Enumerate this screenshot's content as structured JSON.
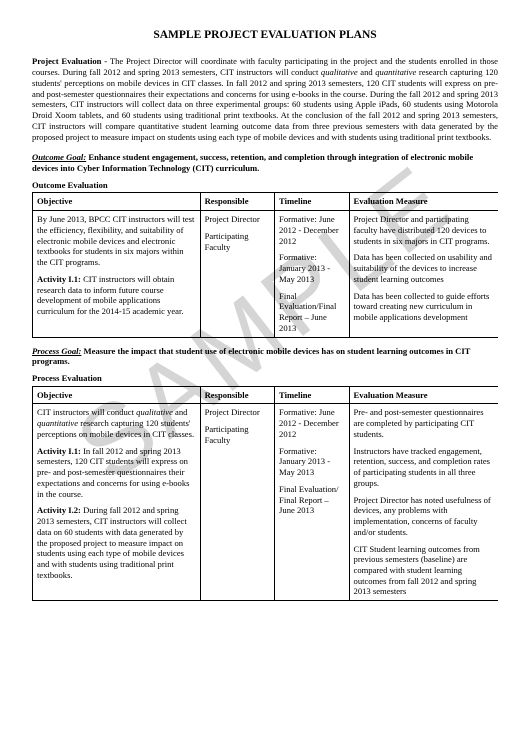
{
  "title": "SAMPLE PROJECT EVALUATION PLANS",
  "watermark": "SAMPLE",
  "intro": {
    "lead": "Project Evaluation - ",
    "body_pre": "The Project Director will coordinate with faculty participating in the project and the students enrolled in those courses. During fall 2012 and spring 2013 semesters, CIT instructors will conduct ",
    "body_qual": "qualitative",
    "body_mid": " and ",
    "body_quant": "quantitative",
    "body_post": " research capturing 120 students' perceptions on mobile devices in CIT classes. In fall 2012 and spring 2013 semesters, 120 CIT students will express on pre- and post-semester questionnaires their expectations and concerns for using e-books in the course. During the fall 2012 and spring 2013 semesters, CIT instructors will collect data on three experimental groups: 60 students using Apple iPads, 60 students using Motorola Droid Xoom tablets, and 60 students using traditional print textbooks. At the conclusion of the fall 2012 and spring 2013 semesters, CIT instructors will compare quantitative student learning outcome data from three previous semesters with data generated by the proposed project to measure impact on students using each type of mobile devices and with students using traditional print textbooks."
  },
  "outcome": {
    "goal_label": "Outcome Goal:",
    "goal_text": " Enhance student engagement, success, retention, and completion through integration of electronic mobile devices into Cyber Information Technology (CIT) curriculum.",
    "section_head": "Outcome Evaluation",
    "headers": {
      "objective": "Objective",
      "responsible": "Responsible",
      "timeline": "Timeline",
      "measure": "Evaluation Measure"
    },
    "row": {
      "objective_p1": "By June 2013, BPCC CIT instructors will test the efficiency, flexibility, and suitability of electronic mobile devices and electronic textbooks for students in six majors within the CIT programs.",
      "activity_label": "Activity I.1:",
      "activity_text": " CIT instructors will obtain research data to inform future course development of mobile applications curriculum for the 2014-15 academic year.",
      "responsible_1": "Project Director",
      "responsible_2": "Participating Faculty",
      "timeline_1": "Formative: June 2012 - December 2012",
      "timeline_2": "Formative: January 2013 - May 2013",
      "timeline_3": "Final Evaluation/Final Report – June 2013",
      "measure_1": "Project Director and participating faculty have distributed 120 devices to students in six majors in CIT programs.",
      "measure_2": "Data has been collected on usability and suitability of the devices to increase student learning outcomes",
      "measure_3": "Data has been collected to guide efforts toward creating new curriculum in mobile applications development"
    }
  },
  "process": {
    "goal_label": "Process Goal:",
    "goal_text": " Measure the impact that student use of electronic mobile devices has on student learning outcomes in CIT programs.",
    "section_head": "Process Evaluation",
    "headers": {
      "objective": "Objective",
      "responsible": "Responsible",
      "timeline": "Timeline",
      "measure": "Evaluation Measure"
    },
    "row": {
      "obj_pre": "CIT instructors will conduct ",
      "obj_qual": "qualitative",
      "obj_mid": " and ",
      "obj_quant": "quantitative",
      "obj_post": " research capturing 120 students' perceptions on mobile devices in CIT classes.",
      "act1_label": "Activity I.1:",
      "act1_text": " In fall 2012 and spring 2013 semesters, 120 CIT students will express on pre- and post-semester questionnaires their expectations and concerns for using e-books in the course.",
      "act2_label": "Activity I.2:",
      "act2_text": " During fall 2012 and spring 2013 semesters, CIT instructors will collect data on 60 students  with data generated by the proposed project to measure impact on students using each type of mobile devices and with students using traditional print textbooks.",
      "responsible_1": "Project Director",
      "responsible_2": "Participating Faculty",
      "timeline_1": "Formative: June 2012 - December 2012",
      "timeline_2": "Formative: January 2013 - May 2013",
      "timeline_3": "Final Evaluation/ Final Report – June 2013",
      "measure_1": "Pre- and post-semester questionnaires are completed by participating CIT students.",
      "measure_2": "Instructors have tracked engagement, retention, success, and completion rates of participating students in all three groups.",
      "measure_3": "Project Director has noted usefulness of devices, any problems with implementation, concerns of faculty and/or students.",
      "measure_4": "CIT Student learning outcomes from previous semesters (baseline) are compared with student learning outcomes from fall 2012 and spring 2013 semesters"
    }
  }
}
